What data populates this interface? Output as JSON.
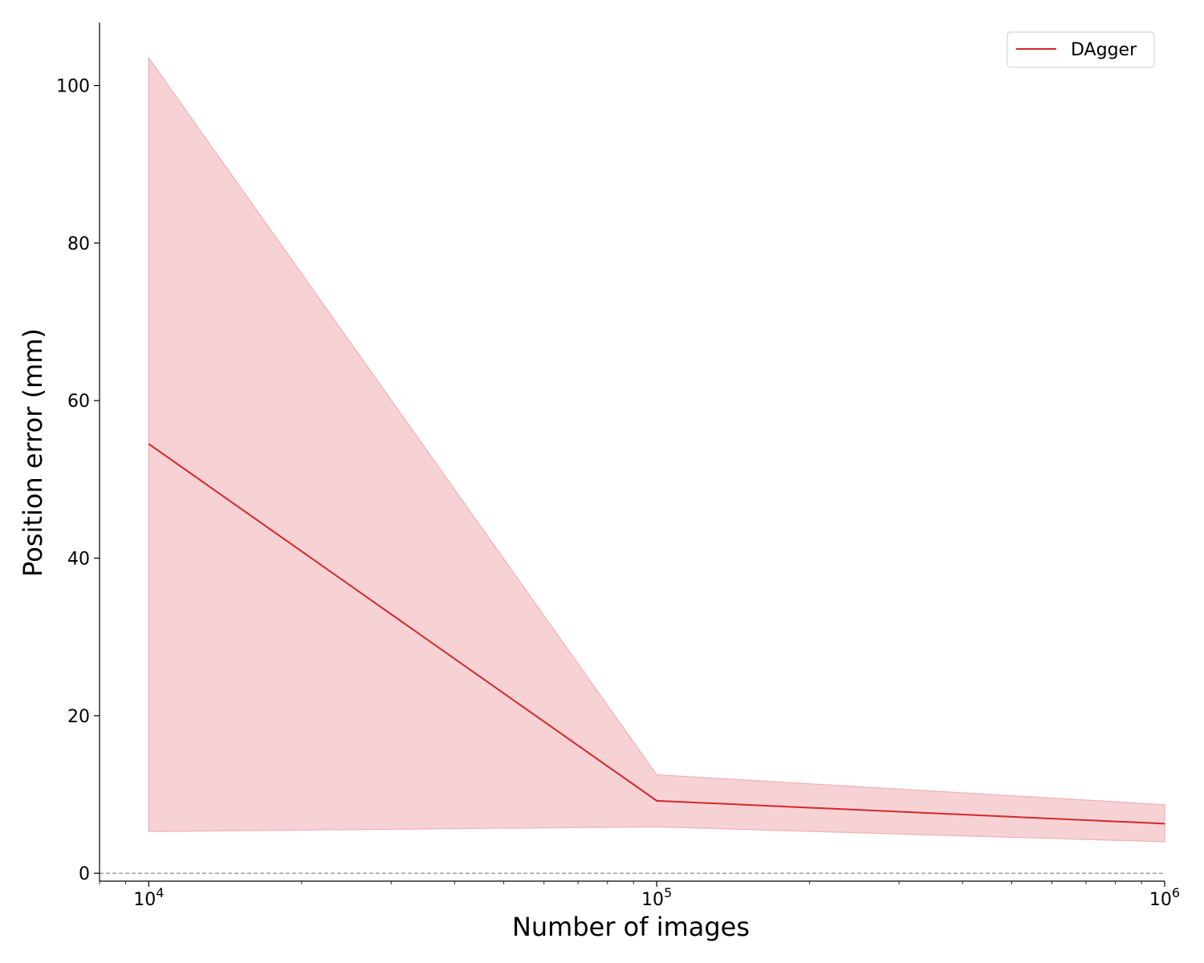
{
  "chart_data": {
    "type": "line",
    "xlabel": "Number of images",
    "ylabel": "Position error (mm)",
    "x_scale": "log",
    "xlim": [
      8000,
      1000000
    ],
    "ylim": [
      -1,
      108
    ],
    "x_ticks": [
      {
        "value": 10000,
        "base": "10",
        "exp": "4"
      },
      {
        "value": 100000,
        "base": "10",
        "exp": "5"
      },
      {
        "value": 1000000,
        "base": "10",
        "exp": "6"
      }
    ],
    "y_ticks": [
      0,
      20,
      40,
      60,
      80,
      100
    ],
    "grid": false,
    "legend_position": "top-right",
    "reference_line": {
      "y": 0,
      "style": "dashed",
      "color": "#808080"
    },
    "series": [
      {
        "name": "DAgger",
        "color": "#d62728",
        "band_color": "#f4c7cb",
        "x": [
          10000,
          100000,
          1000000
        ],
        "y": [
          54.5,
          9.2,
          6.3
        ],
        "lower": [
          5.3,
          5.9,
          4.0
        ],
        "upper": [
          103.5,
          12.5,
          8.7
        ]
      }
    ]
  }
}
